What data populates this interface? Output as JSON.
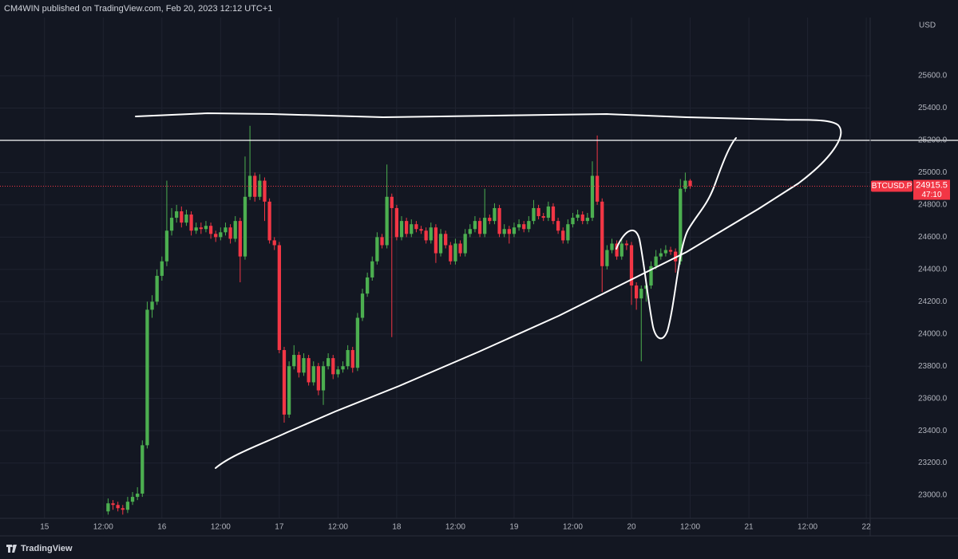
{
  "header": "CM4WIN published on TradingView.com, Feb 20, 2023 12:12 UTC+1",
  "footer": "TradingView",
  "chart_data": {
    "type": "candlestick",
    "currency": "USD",
    "symbol": "BTCUSD.P",
    "countdown": "47:10",
    "up_color": "#4caf50",
    "down_color": "#f23645",
    "hline": 25200,
    "grid": true,
    "xlim": [
      -9.1,
      168.8
    ],
    "ylim": [
      22857,
      25961
    ],
    "xticks": [
      {
        "value": 0,
        "label": "15"
      },
      {
        "value": 12,
        "label": "12:00"
      },
      {
        "value": 24,
        "label": "16"
      },
      {
        "value": 36,
        "label": "12:00"
      },
      {
        "value": 48,
        "label": "17"
      },
      {
        "value": 60,
        "label": "12:00"
      },
      {
        "value": 72,
        "label": "18"
      },
      {
        "value": 84,
        "label": "12:00"
      },
      {
        "value": 96,
        "label": "19"
      },
      {
        "value": 108,
        "label": "12:00"
      },
      {
        "value": 120,
        "label": "20"
      },
      {
        "value": 132,
        "label": "12:00"
      },
      {
        "value": 144,
        "label": "21"
      },
      {
        "value": 156,
        "label": "12:00"
      },
      {
        "value": 168,
        "label": "22"
      }
    ],
    "yticks": [
      {
        "value": 23000,
        "label": "23000.0"
      },
      {
        "value": 23200,
        "label": "23200.0"
      },
      {
        "value": 23400,
        "label": "23400.0"
      },
      {
        "value": 23600,
        "label": "23600.0"
      },
      {
        "value": 23800,
        "label": "23800.0"
      },
      {
        "value": 24000,
        "label": "24000.0"
      },
      {
        "value": 24200,
        "label": "24200.0"
      },
      {
        "value": 24400,
        "label": "24400.0"
      },
      {
        "value": 24600,
        "label": "24600.0"
      },
      {
        "value": 24800,
        "label": "24800.0"
      },
      {
        "value": 25000,
        "label": "25000.0"
      },
      {
        "value": 25200,
        "label": "25200.0"
      },
      {
        "value": 25400,
        "label": "25400.0"
      },
      {
        "value": 25600,
        "label": "25600.0"
      }
    ],
    "x": [
      13,
      14,
      15,
      16,
      17,
      18,
      19,
      20,
      21,
      22,
      23,
      24,
      25,
      26,
      27,
      28,
      29,
      30,
      31,
      32,
      33,
      34,
      35,
      36,
      37,
      38,
      39,
      40,
      41,
      42,
      43,
      44,
      45,
      46,
      47,
      48,
      49,
      50,
      51,
      52,
      53,
      54,
      55,
      56,
      57,
      58,
      59,
      60,
      61,
      62,
      63,
      64,
      65,
      66,
      67,
      68,
      69,
      70,
      71,
      72,
      73,
      74,
      75,
      76,
      77,
      78,
      79,
      80,
      81,
      82,
      83,
      84,
      85,
      86,
      87,
      88,
      89,
      90,
      91,
      92,
      93,
      94,
      95,
      96,
      97,
      98,
      99,
      100,
      101,
      102,
      103,
      104,
      105,
      106,
      107,
      108,
      109,
      110,
      111,
      112,
      113,
      114,
      115,
      116,
      117,
      118,
      119,
      120,
      121,
      122,
      123,
      124,
      125,
      126,
      127,
      128,
      129,
      130,
      131,
      132
    ],
    "ohlc": [
      [
        22900,
        22980,
        22880,
        22950
      ],
      [
        22950,
        22970,
        22910,
        22940
      ],
      [
        22940,
        22960,
        22900,
        22920
      ],
      [
        22920,
        22940,
        22880,
        22910
      ],
      [
        22910,
        22990,
        22890,
        22960
      ],
      [
        22960,
        23020,
        22940,
        22990
      ],
      [
        22990,
        23050,
        22970,
        23010
      ],
      [
        23010,
        23340,
        22990,
        23310
      ],
      [
        23310,
        24200,
        23290,
        24150
      ],
      [
        24150,
        24240,
        24100,
        24200
      ],
      [
        24200,
        24400,
        24180,
        24360
      ],
      [
        24360,
        24480,
        24330,
        24450
      ],
      [
        24450,
        24950,
        24420,
        24640
      ],
      [
        24640,
        24780,
        24610,
        24720
      ],
      [
        24720,
        24800,
        24690,
        24760
      ],
      [
        24760,
        24790,
        24660,
        24690
      ],
      [
        24690,
        24770,
        24670,
        24740
      ],
      [
        24740,
        24760,
        24610,
        24640
      ],
      [
        24640,
        24690,
        24620,
        24660
      ],
      [
        24660,
        24690,
        24620,
        24650
      ],
      [
        24650,
        24700,
        24630,
        24670
      ],
      [
        24670,
        24690,
        24590,
        24620
      ],
      [
        24620,
        24640,
        24570,
        24600
      ],
      [
        24600,
        24660,
        24580,
        24630
      ],
      [
        24630,
        24690,
        24610,
        24660
      ],
      [
        24660,
        24680,
        24560,
        24590
      ],
      [
        24590,
        24730,
        24570,
        24700
      ],
      [
        24700,
        24720,
        24320,
        24480
      ],
      [
        24480,
        25100,
        24460,
        24850
      ],
      [
        24850,
        25290,
        24830,
        24980
      ],
      [
        24980,
        25000,
        24820,
        24850
      ],
      [
        24850,
        24990,
        24830,
        24950
      ],
      [
        24950,
        24970,
        24700,
        24820
      ],
      [
        24820,
        24840,
        24560,
        24580
      ],
      [
        24580,
        24600,
        24520,
        24550
      ],
      [
        24550,
        24570,
        23880,
        23900
      ],
      [
        23900,
        23920,
        23450,
        23500
      ],
      [
        23500,
        23830,
        23480,
        23800
      ],
      [
        23800,
        23930,
        23780,
        23870
      ],
      [
        23870,
        23890,
        23730,
        23760
      ],
      [
        23760,
        23880,
        23740,
        23850
      ],
      [
        23850,
        23870,
        23680,
        23700
      ],
      [
        23700,
        23830,
        23680,
        23800
      ],
      [
        23800,
        23820,
        23620,
        23650
      ],
      [
        23650,
        23830,
        23560,
        23800
      ],
      [
        23800,
        23880,
        23780,
        23850
      ],
      [
        23850,
        23870,
        23720,
        23750
      ],
      [
        23750,
        23800,
        23730,
        23780
      ],
      [
        23780,
        23830,
        23760,
        23800
      ],
      [
        23800,
        23930,
        23780,
        23900
      ],
      [
        23900,
        23920,
        23760,
        23790
      ],
      [
        23790,
        24130,
        23770,
        24100
      ],
      [
        24100,
        24280,
        24080,
        24250
      ],
      [
        24250,
        24380,
        24230,
        24350
      ],
      [
        24350,
        24480,
        24330,
        24450
      ],
      [
        24450,
        24630,
        24430,
        24600
      ],
      [
        24600,
        24620,
        24530,
        24550
      ],
      [
        24550,
        25050,
        24530,
        24850
      ],
      [
        24850,
        24870,
        23980,
        24780
      ],
      [
        24780,
        24800,
        24580,
        24600
      ],
      [
        24600,
        24730,
        24580,
        24700
      ],
      [
        24700,
        24720,
        24600,
        24620
      ],
      [
        24620,
        24710,
        24600,
        24680
      ],
      [
        24680,
        24700,
        24630,
        24650
      ],
      [
        24650,
        24670,
        24620,
        24640
      ],
      [
        24640,
        24660,
        24560,
        24580
      ],
      [
        24580,
        24690,
        24560,
        24660
      ],
      [
        24660,
        24680,
        24440,
        24500
      ],
      [
        24500,
        24650,
        24480,
        24620
      ],
      [
        24620,
        24640,
        24530,
        24550
      ],
      [
        24550,
        24570,
        24430,
        24450
      ],
      [
        24450,
        24590,
        24430,
        24560
      ],
      [
        24560,
        24580,
        24480,
        24500
      ],
      [
        24500,
        24650,
        24480,
        24620
      ],
      [
        24620,
        24680,
        24600,
        24650
      ],
      [
        24650,
        24730,
        24630,
        24700
      ],
      [
        24700,
        24720,
        24600,
        24620
      ],
      [
        24620,
        24900,
        24600,
        24720
      ],
      [
        24720,
        24740,
        24680,
        24700
      ],
      [
        24700,
        24810,
        24680,
        24780
      ],
      [
        24780,
        24800,
        24600,
        24620
      ],
      [
        24620,
        24680,
        24600,
        24650
      ],
      [
        24650,
        24670,
        24560,
        24620
      ],
      [
        24620,
        24690,
        24600,
        24660
      ],
      [
        24660,
        24710,
        24640,
        24680
      ],
      [
        24680,
        24700,
        24630,
        24650
      ],
      [
        24650,
        24730,
        24630,
        24700
      ],
      [
        24700,
        24830,
        24680,
        24780
      ],
      [
        24780,
        24800,
        24710,
        24730
      ],
      [
        24730,
        24750,
        24700,
        24720
      ],
      [
        24720,
        24820,
        24700,
        24790
      ],
      [
        24790,
        24810,
        24680,
        24700
      ],
      [
        24700,
        24720,
        24620,
        24640
      ],
      [
        24640,
        24660,
        24560,
        24580
      ],
      [
        24580,
        24710,
        24560,
        24680
      ],
      [
        24680,
        24750,
        24660,
        24720
      ],
      [
        24720,
        24770,
        24700,
        24740
      ],
      [
        24740,
        24760,
        24680,
        24700
      ],
      [
        24700,
        24750,
        24680,
        24720
      ],
      [
        24720,
        25070,
        24700,
        24980
      ],
      [
        24980,
        25230,
        24800,
        24820
      ],
      [
        24820,
        24840,
        24260,
        24420
      ],
      [
        24420,
        24550,
        24400,
        24520
      ],
      [
        24520,
        24590,
        24500,
        24560
      ],
      [
        24560,
        24580,
        24460,
        24480
      ],
      [
        24480,
        24590,
        24460,
        24560
      ],
      [
        24560,
        24580,
        24520,
        24550
      ],
      [
        24550,
        24570,
        24180,
        24300
      ],
      [
        24300,
        24320,
        24150,
        24220
      ],
      [
        24220,
        24300,
        23830,
        24280
      ],
      [
        24280,
        24330,
        24200,
        24300
      ],
      [
        24300,
        24450,
        24280,
        24420
      ],
      [
        24420,
        24520,
        24400,
        24480
      ],
      [
        24480,
        24530,
        24460,
        24500
      ],
      [
        24500,
        24550,
        24480,
        24520
      ],
      [
        24520,
        24540,
        24490,
        24510
      ],
      [
        24510,
        24530,
        24380,
        24450
      ],
      [
        24450,
        24960,
        24430,
        24900
      ],
      [
        24900,
        25000,
        24880,
        24950
      ],
      [
        24950,
        24960,
        24900,
        24915.5
      ]
    ]
  }
}
